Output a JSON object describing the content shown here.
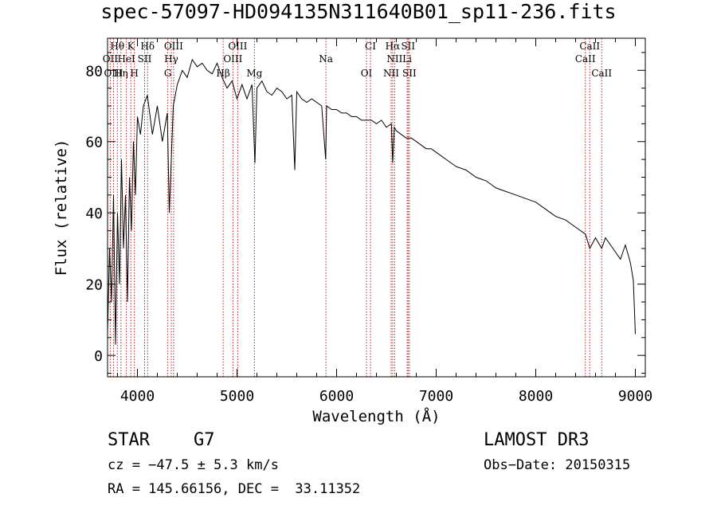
{
  "header": {
    "title": "spec-57097-HD094135N311640B01_sp11-236.fits"
  },
  "info": {
    "object_class": "STAR",
    "subclass": "G7",
    "cz": "cz = −47.5 ± 5.3 km/s",
    "coords": "RA = 145.66156, DEC =  33.11352",
    "survey": "LAMOST DR3",
    "obs_date": "Obs−Date: 20150315"
  },
  "colors": {
    "line": "#000000",
    "marker": "#b22222",
    "background": "#ffffff"
  },
  "chart_data": {
    "type": "line",
    "title": "spec-57097-HD094135N311640B01_sp11-236.fits",
    "xlabel": "Wavelength (Å)",
    "ylabel": "Flux (relative)",
    "xlim": [
      3700,
      9100
    ],
    "ylim": [
      -6,
      89
    ],
    "x_ticks": [
      4000,
      5000,
      6000,
      7000,
      8000,
      9000
    ],
    "y_ticks": [
      0,
      20,
      40,
      60,
      80
    ],
    "grid": false,
    "series": [
      {
        "name": "flux",
        "x": [
          3700,
          3720,
          3740,
          3760,
          3780,
          3800,
          3820,
          3840,
          3860,
          3880,
          3900,
          3920,
          3940,
          3960,
          3980,
          4000,
          4030,
          4060,
          4100,
          4150,
          4200,
          4250,
          4300,
          4320,
          4340,
          4360,
          4400,
          4450,
          4500,
          4550,
          4600,
          4650,
          4700,
          4750,
          4800,
          4850,
          4900,
          4950,
          5000,
          5050,
          5100,
          5150,
          5180,
          5200,
          5250,
          5300,
          5350,
          5400,
          5450,
          5500,
          5550,
          5580,
          5600,
          5650,
          5700,
          5750,
          5800,
          5850,
          5890,
          5900,
          5950,
          6000,
          6050,
          6100,
          6150,
          6200,
          6250,
          6300,
          6350,
          6400,
          6450,
          6500,
          6550,
          6563,
          6580,
          6600,
          6650,
          6700,
          6750,
          6800,
          6850,
          6900,
          6950,
          7000,
          7100,
          7200,
          7300,
          7400,
          7500,
          7600,
          7700,
          7800,
          7900,
          8000,
          8100,
          8200,
          8300,
          8400,
          8500,
          8542,
          8600,
          8662,
          8700,
          8750,
          8800,
          8850,
          8900,
          8950,
          8980,
          9000
        ],
        "values": [
          6,
          30,
          15,
          45,
          3,
          40,
          20,
          55,
          30,
          45,
          15,
          50,
          35,
          60,
          45,
          67,
          62,
          70,
          73,
          62,
          70,
          60,
          68,
          40,
          55,
          70,
          76,
          80,
          78,
          83,
          81,
          82,
          80,
          79,
          82,
          78,
          75,
          77,
          72,
          76,
          72,
          76,
          54,
          75,
          77,
          74,
          73,
          75,
          74,
          72,
          73,
          52,
          74,
          72,
          71,
          72,
          71,
          70,
          55,
          70,
          69,
          69,
          68,
          68,
          67,
          67,
          66,
          66,
          66,
          65,
          66,
          64,
          65,
          54,
          64,
          63,
          62,
          61,
          61,
          60,
          59,
          58,
          58,
          57,
          55,
          53,
          52,
          50,
          49,
          47,
          46,
          45,
          44,
          43,
          41,
          39,
          38,
          36,
          34,
          30,
          33,
          30,
          33,
          31,
          29,
          27,
          31,
          26,
          21,
          6
        ]
      }
    ],
    "line_markers": [
      {
        "label": "Hθ",
        "x": 3798,
        "row": 0
      },
      {
        "label": "K",
        "x": 3934,
        "row": 0
      },
      {
        "label": "Hδ",
        "x": 4102,
        "row": 0
      },
      {
        "label": "OIII",
        "x": 4363,
        "row": 0
      },
      {
        "label": "OIII",
        "x": 5007,
        "row": 0
      },
      {
        "label": "CI",
        "x": 6340,
        "row": 0
      },
      {
        "label": "Hα",
        "x": 6563,
        "row": 0
      },
      {
        "label": "SII",
        "x": 6718,
        "row": 0
      },
      {
        "label": "CaII",
        "x": 8542,
        "row": 0
      },
      {
        "label": "OII",
        "x": 3727,
        "row": 1
      },
      {
        "label": "HeI",
        "x": 3889,
        "row": 1
      },
      {
        "label": "SII",
        "x": 4072,
        "row": 1
      },
      {
        "label": "Hγ",
        "x": 4340,
        "row": 1
      },
      {
        "label": "OIII",
        "x": 4959,
        "row": 1
      },
      {
        "label": "Na",
        "x": 5893,
        "row": 1
      },
      {
        "label": "NII",
        "x": 6583,
        "row": 1
      },
      {
        "label": "Li",
        "x": 6708,
        "row": 1
      },
      {
        "label": "CaII",
        "x": 8498,
        "row": 1
      },
      {
        "label": "OIII",
        "x": 3760,
        "row": 2
      },
      {
        "label": "Hη",
        "x": 3835,
        "row": 2
      },
      {
        "label": "H",
        "x": 3969,
        "row": 2
      },
      {
        "label": "G",
        "x": 4305,
        "row": 2
      },
      {
        "label": "Hβ",
        "x": 4861,
        "row": 2
      },
      {
        "label": "Mg",
        "x": 5175,
        "row": 2
      },
      {
        "label": "OI",
        "x": 6300,
        "row": 2
      },
      {
        "label": "NII",
        "x": 6548,
        "row": 2
      },
      {
        "label": "SII",
        "x": 6731,
        "row": 2
      },
      {
        "label": "CaII",
        "x": 8662,
        "row": 2
      }
    ]
  }
}
